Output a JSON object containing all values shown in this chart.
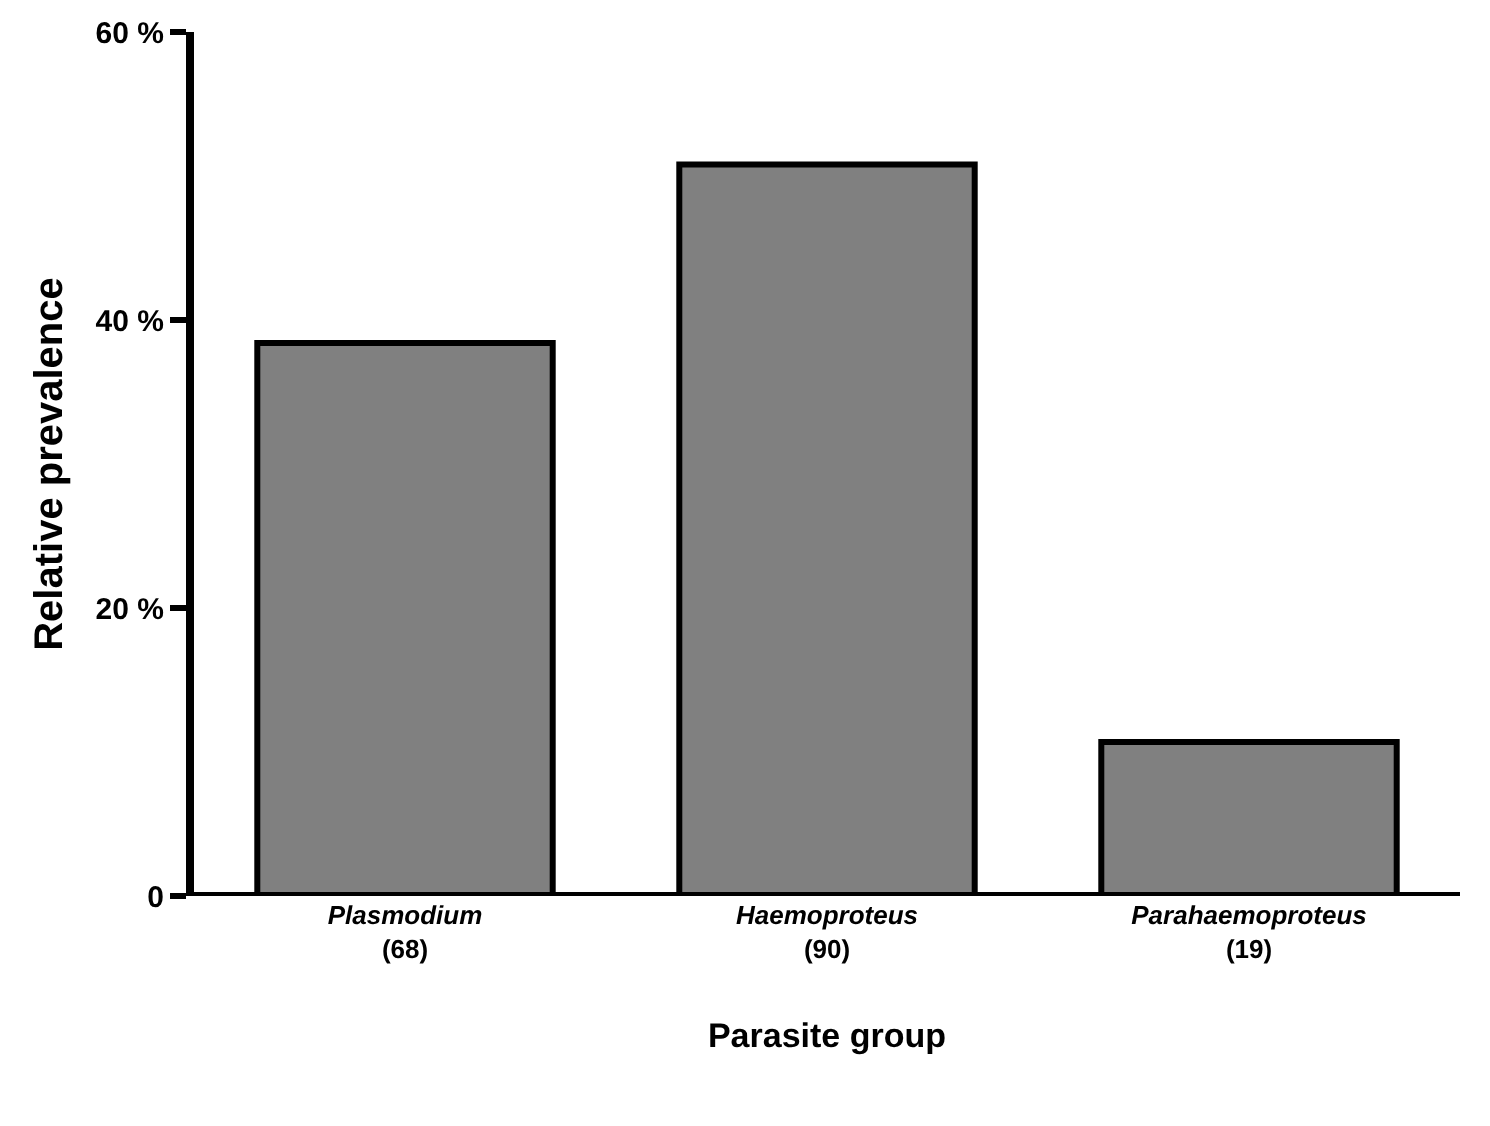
{
  "chart_data": {
    "type": "bar",
    "categories": [
      "Plasmodium\n(68)",
      "Haemoproteus\n(90)",
      "Parahaemoproteus\n(19)"
    ],
    "values": [
      38.4,
      50.8,
      10.7
    ],
    "color": "#808080",
    "xlabel": "Parasite group",
    "ylabel": "Relative prevalence",
    "ylim": [
      0,
      60
    ],
    "yticks": [
      {
        "value": 0,
        "label": "0"
      },
      {
        "value": 20,
        "label": "20 %"
      },
      {
        "value": 40,
        "label": "40 %"
      },
      {
        "value": 60,
        "label": "60 %"
      }
    ],
    "grid": false
  }
}
